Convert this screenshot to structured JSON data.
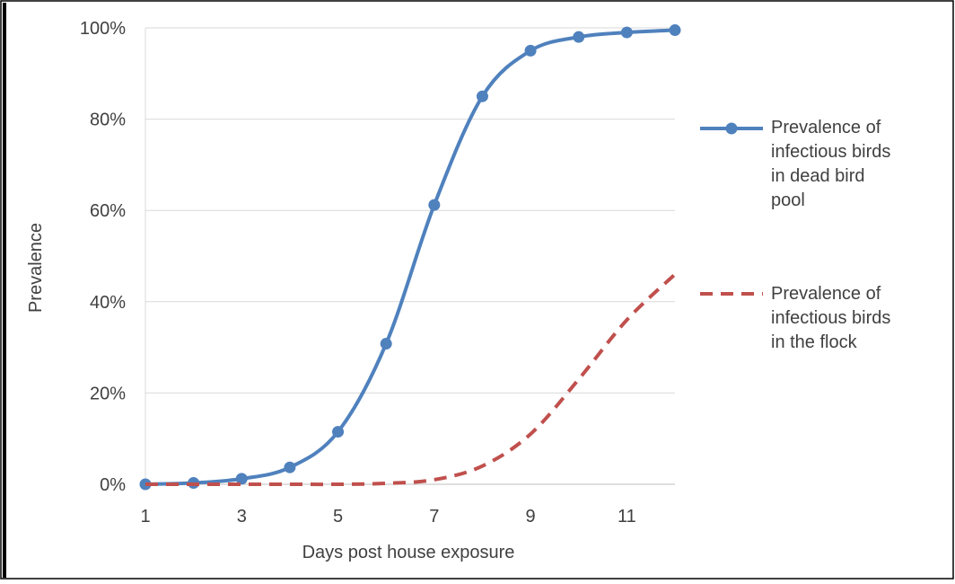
{
  "chart_data": {
    "type": "line",
    "title": "",
    "xlabel": "Days post house exposure",
    "ylabel": "Prevalence",
    "xlim": [
      1,
      12
    ],
    "ylim": [
      0,
      1
    ],
    "x_ticks": [
      1,
      3,
      5,
      7,
      9,
      11
    ],
    "y_ticks": [
      0,
      0.2,
      0.4,
      0.6,
      0.8,
      1.0
    ],
    "y_tick_labels": [
      "0%",
      "20%",
      "40%",
      "60%",
      "80%",
      "100%"
    ],
    "grid": "horizontal",
    "legend_position": "right",
    "x": [
      1,
      2,
      3,
      4,
      5,
      6,
      7,
      8,
      9,
      10,
      11,
      12
    ],
    "series": [
      {
        "name": "Prevalence of infectious birds in dead bird pool",
        "legend_lines": [
          "Prevalence of",
          "infectious birds",
          "in dead bird",
          "pool"
        ],
        "color": "#4F81BD",
        "style": "solid-markers",
        "values": [
          0.0,
          0.003,
          0.012,
          0.037,
          0.115,
          0.308,
          0.612,
          0.85,
          0.95,
          0.98,
          0.99,
          0.995
        ]
      },
      {
        "name": "Prevalence of infectious birds in the flock",
        "legend_lines": [
          "Prevalence of",
          "infectious birds",
          "in the flock"
        ],
        "color": "#C0504D",
        "style": "dashed",
        "values": [
          0.0,
          0.0,
          0.0,
          0.0,
          0.0,
          0.002,
          0.01,
          0.04,
          0.11,
          0.23,
          0.36,
          0.46
        ]
      }
    ]
  }
}
